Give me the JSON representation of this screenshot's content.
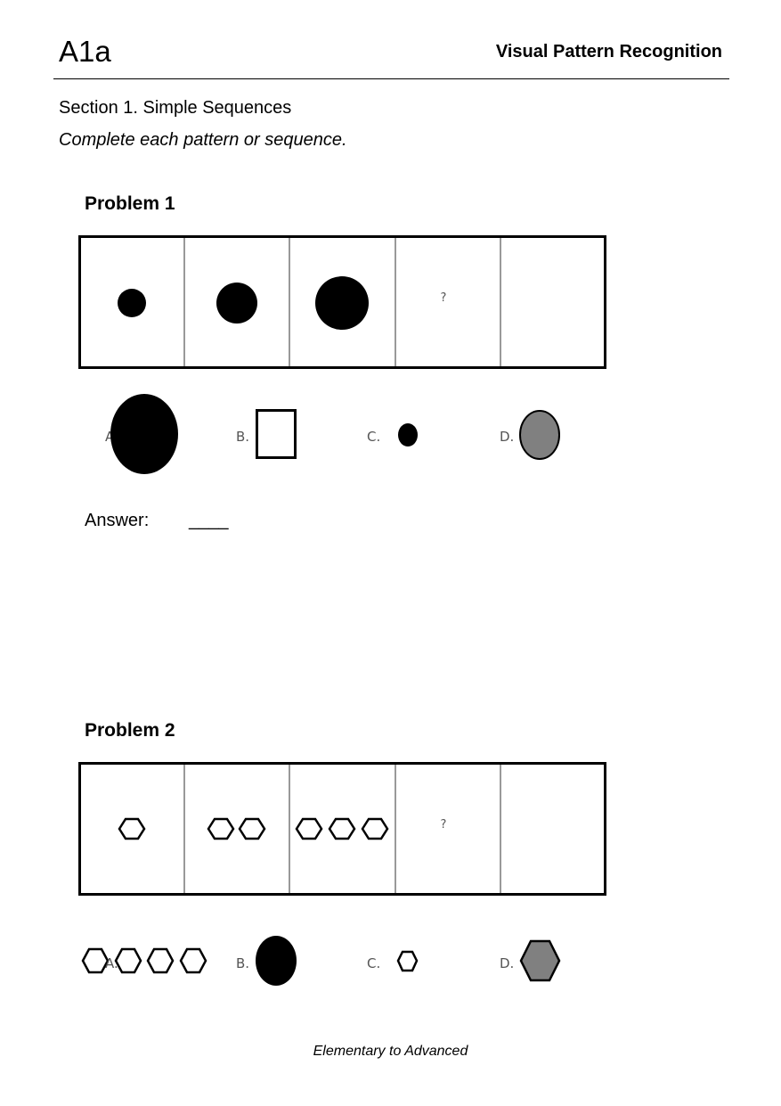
{
  "header": {
    "level_code": "A1a",
    "title": "Visual Pattern Recognition"
  },
  "section": {
    "title": "Section 1. Simple Sequences",
    "instructions": "Complete each pattern or sequence."
  },
  "problems": [
    {
      "title": "Problem 1",
      "sequence": [
        "small black circle",
        "medium black circle",
        "large black circle",
        "?",
        ""
      ],
      "missing_marker": "?",
      "options": [
        {
          "label": "A.",
          "shape": "very large black ellipse"
        },
        {
          "label": "B.",
          "shape": "white square"
        },
        {
          "label": "C.",
          "shape": "small black ellipse"
        },
        {
          "label": "D.",
          "shape": "gray ellipse"
        }
      ],
      "answer_label": "Answer:",
      "answer_blank": "____"
    },
    {
      "title": "Problem 2",
      "sequence": [
        "1 hexagon",
        "2 hexagons",
        "3 hexagons",
        "?",
        ""
      ],
      "missing_marker": "?",
      "options": [
        {
          "label": "A.",
          "shape": "4 hexagons"
        },
        {
          "label": "B.",
          "shape": "black ellipse"
        },
        {
          "label": "C.",
          "shape": "small hexagon"
        },
        {
          "label": "D.",
          "shape": "gray hexagon"
        }
      ]
    }
  ],
  "colors": {
    "fill_black": "#000000",
    "fill_gray": "#808080",
    "divider_gray": "#999999"
  },
  "footer": {
    "text": "Elementary to Advanced"
  }
}
